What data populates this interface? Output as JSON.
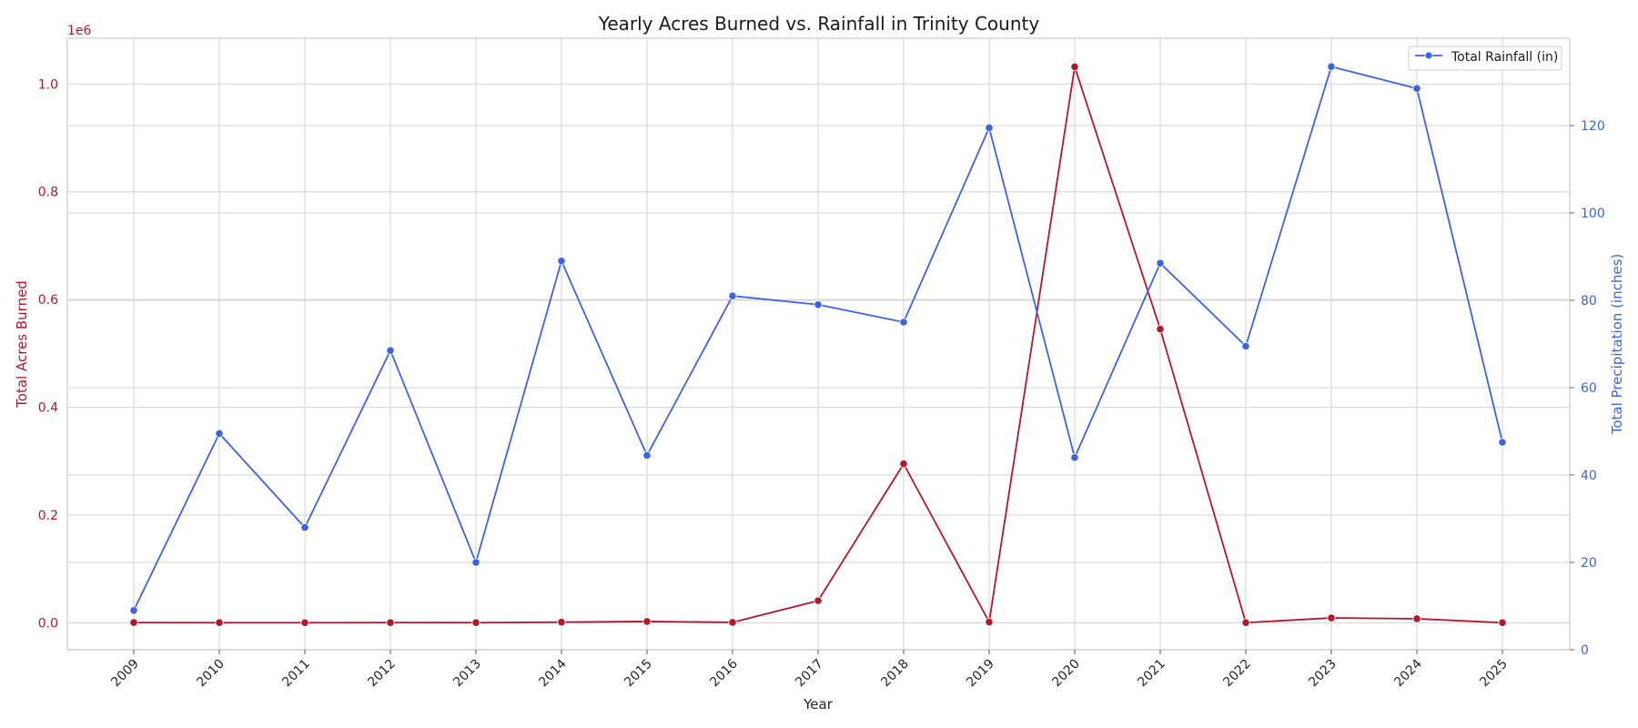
{
  "chart_data": {
    "type": "line",
    "title": "Yearly Acres Burned vs. Rainfall in Trinity County",
    "xlabel": "Year",
    "ylabel_left": "Total Acres Burned",
    "ylabel_right": "Total Precipitation (inches)",
    "left_axis_offset_label": "1e6",
    "categories": [
      "2009",
      "2010",
      "2011",
      "2012",
      "2013",
      "2014",
      "2015",
      "2016",
      "2017",
      "2018",
      "2019",
      "2020",
      "2021",
      "2022",
      "2023",
      "2024",
      "2025"
    ],
    "y_left_ticks": [
      "0.0",
      "0.2",
      "0.4",
      "0.6",
      "0.8",
      "1.0"
    ],
    "y_right_ticks": [
      "0",
      "20",
      "40",
      "60",
      "80",
      "100",
      "120"
    ],
    "ylim_left": [
      -0.05,
      1.085
    ],
    "ylim_right": [
      0,
      140
    ],
    "grid": true,
    "legend_position": "top-right",
    "series": [
      {
        "name": "",
        "axis": "left",
        "color": "#b2182b",
        "units_multiplier": 1000000,
        "values": [
          0.0005,
          0.0003,
          0.0002,
          0.0004,
          0.0003,
          0.0012,
          0.0025,
          0.0008,
          0.041,
          0.295,
          0.0015,
          1.032,
          0.545,
          0.0003,
          0.009,
          0.0075,
          0.0003
        ]
      },
      {
        "name": "Total Rainfall (in)",
        "axis": "right",
        "color": "#3b65e0",
        "values": [
          9.0,
          49.5,
          28.0,
          68.5,
          20.0,
          89.0,
          44.5,
          81.0,
          79.0,
          75.0,
          119.5,
          44.0,
          88.5,
          69.5,
          133.5,
          128.5,
          47.5
        ]
      }
    ]
  }
}
